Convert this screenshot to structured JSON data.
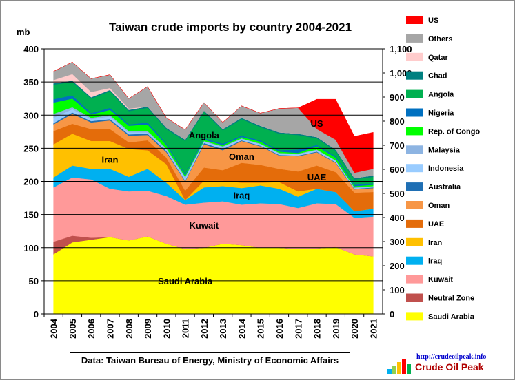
{
  "chart_data": {
    "type": "area",
    "stacked": true,
    "title": "Taiwan crude imports by country 2004-2021",
    "ylabel": "mb",
    "ylim": [
      0,
      400
    ],
    "y_ticks": [
      0,
      50,
      100,
      150,
      200,
      250,
      300,
      350,
      400
    ],
    "y2lim": [
      0,
      1100
    ],
    "y2_ticks": [
      "0",
      "100",
      "200",
      "300",
      "400",
      "500",
      "600",
      "700",
      "800",
      "900",
      "1,000",
      "1,100"
    ],
    "grid": true,
    "legend_position": "right",
    "x": [
      "2004",
      "2005",
      "2006",
      "2007",
      "2008",
      "2009",
      "2010",
      "2011",
      "2012",
      "2013",
      "2014",
      "2015",
      "2016",
      "2017",
      "2018",
      "2019",
      "2020",
      "2021"
    ],
    "series": [
      {
        "name": "Saudi Arabia",
        "color": "#ffff00",
        "values": [
          90,
          108,
          112,
          116,
          111,
          117,
          106,
          98,
          100,
          106,
          104,
          100,
          100,
          98,
          99,
          101,
          90,
          87
        ]
      },
      {
        "name": "Neutral Zone",
        "color": "#c0504d",
        "values": [
          19,
          10,
          3,
          0,
          0,
          0,
          0,
          0,
          0,
          0,
          0,
          0,
          0,
          0,
          0,
          0,
          0,
          0
        ]
      },
      {
        "name": "Kuwait",
        "color": "#ff9999",
        "values": [
          82,
          88,
          88,
          73,
          74,
          69,
          72,
          67,
          68,
          64,
          61,
          67,
          66,
          62,
          68,
          65,
          55,
          60
        ]
      },
      {
        "name": "Iraq",
        "color": "#00b0f0",
        "values": [
          15,
          18,
          16,
          30,
          22,
          33,
          20,
          7,
          23,
          23,
          25,
          27,
          23,
          17,
          22,
          18,
          10,
          12
        ]
      },
      {
        "name": "Iran",
        "color": "#ffc000",
        "values": [
          50,
          48,
          42,
          42,
          42,
          28,
          28,
          0,
          10,
          8,
          8,
          4,
          10,
          8,
          0,
          0,
          0,
          0
        ]
      },
      {
        "name": "UAE",
        "color": "#e46c0a",
        "values": [
          20,
          15,
          18,
          18,
          10,
          15,
          10,
          14,
          20,
          16,
          30,
          27,
          20,
          30,
          35,
          30,
          28,
          25
        ]
      },
      {
        "name": "Oman",
        "color": "#f79646",
        "values": [
          10,
          15,
          10,
          13,
          10,
          8,
          8,
          14,
          35,
          30,
          33,
          28,
          20,
          23,
          20,
          14,
          5,
          6
        ]
      },
      {
        "name": "Australia",
        "color": "#1f6fb4",
        "values": [
          2,
          2,
          2,
          2,
          2,
          2,
          2,
          1,
          2,
          2,
          1,
          1,
          1,
          1,
          1,
          1,
          1,
          1
        ]
      },
      {
        "name": "Indonesia",
        "color": "#99ccff",
        "values": [
          8,
          5,
          3,
          4,
          3,
          2,
          2,
          4,
          2,
          3,
          2,
          2,
          2,
          2,
          2,
          2,
          1,
          1
        ]
      },
      {
        "name": "Malaysia",
        "color": "#8db4e2",
        "values": [
          6,
          3,
          2,
          2,
          2,
          2,
          2,
          2,
          1,
          1,
          1,
          1,
          1,
          1,
          1,
          1,
          1,
          1
        ]
      },
      {
        "name": "Rep. of Congo",
        "color": "#00ff00",
        "values": [
          17,
          13,
          5,
          8,
          8,
          10,
          5,
          2,
          2,
          2,
          2,
          3,
          2,
          1,
          5,
          4,
          2,
          2
        ]
      },
      {
        "name": "Nigeria",
        "color": "#0070c0",
        "values": [
          5,
          5,
          2,
          3,
          2,
          3,
          2,
          2,
          2,
          2,
          2,
          2,
          2,
          5,
          2,
          2,
          2,
          2
        ]
      },
      {
        "name": "Angola",
        "color": "#00b050",
        "values": [
          22,
          20,
          22,
          25,
          20,
          22,
          22,
          50,
          40,
          20,
          25,
          20,
          25,
          22,
          10,
          8,
          8,
          10
        ]
      },
      {
        "name": "Chad",
        "color": "#008080",
        "values": [
          2,
          2,
          2,
          2,
          2,
          2,
          2,
          2,
          2,
          2,
          2,
          2,
          2,
          2,
          2,
          2,
          2,
          2
        ]
      },
      {
        "name": "Qatar",
        "color": "#ffcccc",
        "values": [
          5,
          10,
          8,
          3,
          2,
          0,
          0,
          0,
          0,
          0,
          0,
          0,
          0,
          0,
          0,
          0,
          0,
          0
        ]
      },
      {
        "name": "Others",
        "color": "#a6a6a6",
        "values": [
          13,
          18,
          20,
          20,
          15,
          30,
          15,
          15,
          12,
          10,
          18,
          19,
          36,
          39,
          12,
          15,
          8,
          10
        ]
      },
      {
        "name": "US",
        "color": "#ff0000",
        "values": [
          0,
          0,
          0,
          0,
          0,
          0,
          0,
          0,
          0,
          0,
          0,
          0,
          0,
          0,
          45,
          61,
          55,
          55
        ]
      }
    ],
    "area_labels": [
      {
        "series": "Saudi Arabia",
        "text": "Saudi Arabia",
        "x": "2011",
        "y": 50
      },
      {
        "series": "Kuwait",
        "text": "Kuwait",
        "x": "2012",
        "y": 134
      },
      {
        "series": "Iraq",
        "text": "Iraq",
        "x": "2014",
        "y": 179
      },
      {
        "series": "Iran",
        "text": "Iran",
        "x": "2007",
        "y": 233
      },
      {
        "series": "UAE",
        "text": "UAE",
        "x": "2018",
        "y": 207
      },
      {
        "series": "Oman",
        "text": "Oman",
        "x": "2014",
        "y": 238
      },
      {
        "series": "Angola",
        "text": "Angola",
        "x": "2012",
        "y": 270
      },
      {
        "series": "US",
        "text": "US",
        "x": "2018",
        "y": 288
      }
    ],
    "legend_order": [
      "US",
      "Others",
      "Qatar",
      "Chad",
      "Angola",
      "Nigeria",
      "Rep. of Congo",
      "Malaysia",
      "Indonesia",
      "Australia",
      "Oman",
      "UAE",
      "Iran",
      "Iraq",
      "Kuwait",
      "Neutral Zone",
      "Saudi Arabia"
    ]
  },
  "footer": {
    "source": "Data: Taiwan Bureau of Energy, Ministry of Economic Affairs",
    "logo_url": "http://crudeoilpeak.info",
    "logo_name": "Crude Oil Peak"
  }
}
